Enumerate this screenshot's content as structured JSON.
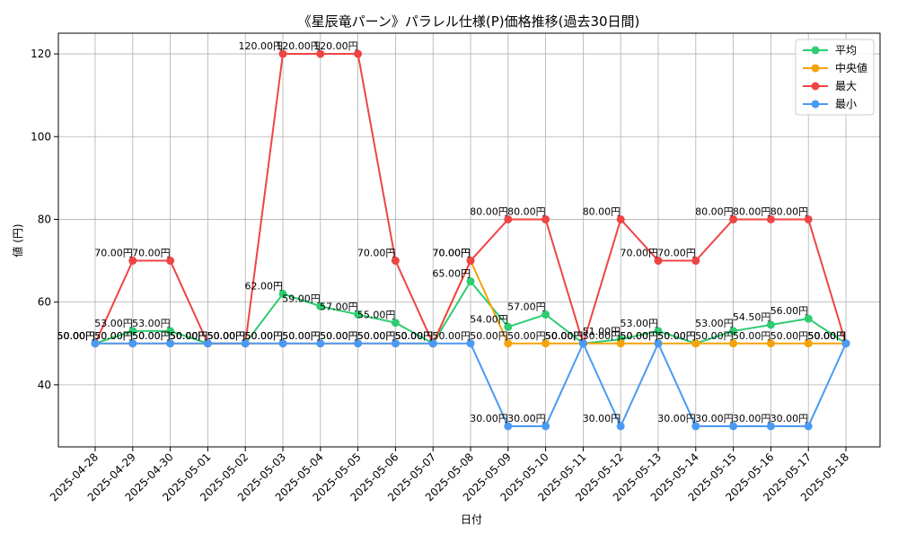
{
  "chart_data": {
    "type": "line",
    "title": "《星辰竜パーン》パラレル仕様(P)価格推移(過去30日間)",
    "xlabel": "日付",
    "ylabel": "値 (円)",
    "ylim": [
      25,
      125
    ],
    "yticks": [
      40,
      60,
      80,
      100,
      120
    ],
    "grid": true,
    "legend_position": "top-right",
    "label_suffix": "円",
    "categories": [
      "2025-04-28",
      "2025-04-29",
      "2025-04-30",
      "2025-05-01",
      "2025-05-02",
      "2025-05-03",
      "2025-05-04",
      "2025-05-05",
      "2025-05-06",
      "2025-05-07",
      "2025-05-08",
      "2025-05-09",
      "2025-05-10",
      "2025-05-11",
      "2025-05-12",
      "2025-05-13",
      "2025-05-14",
      "2025-05-15",
      "2025-05-16",
      "2025-05-17",
      "2025-05-18"
    ],
    "series": [
      {
        "name": "平均",
        "color": "#2ecc71",
        "values": [
          50,
          53,
          53,
          50,
          50,
          62,
          59,
          57,
          55,
          50,
          65,
          54,
          57,
          50,
          51,
          53,
          50,
          53,
          54.5,
          56,
          50
        ]
      },
      {
        "name": "中央値",
        "color": "#f5a30a",
        "values": [
          50,
          50,
          50,
          50,
          50,
          50,
          50,
          50,
          50,
          50,
          70,
          50,
          50,
          50,
          50,
          50,
          50,
          50,
          50,
          50,
          50
        ]
      },
      {
        "name": "最大",
        "color": "#ef4444",
        "values": [
          50,
          70,
          70,
          50,
          50,
          120,
          120,
          120,
          70,
          50,
          70,
          80,
          80,
          50,
          80,
          70,
          70,
          80,
          80,
          80,
          50
        ]
      },
      {
        "name": "最小",
        "color": "#4a9af5",
        "values": [
          50,
          50,
          50,
          50,
          50,
          50,
          50,
          50,
          50,
          50,
          50,
          30,
          30,
          50,
          30,
          50,
          30,
          30,
          30,
          30,
          50
        ]
      }
    ]
  }
}
